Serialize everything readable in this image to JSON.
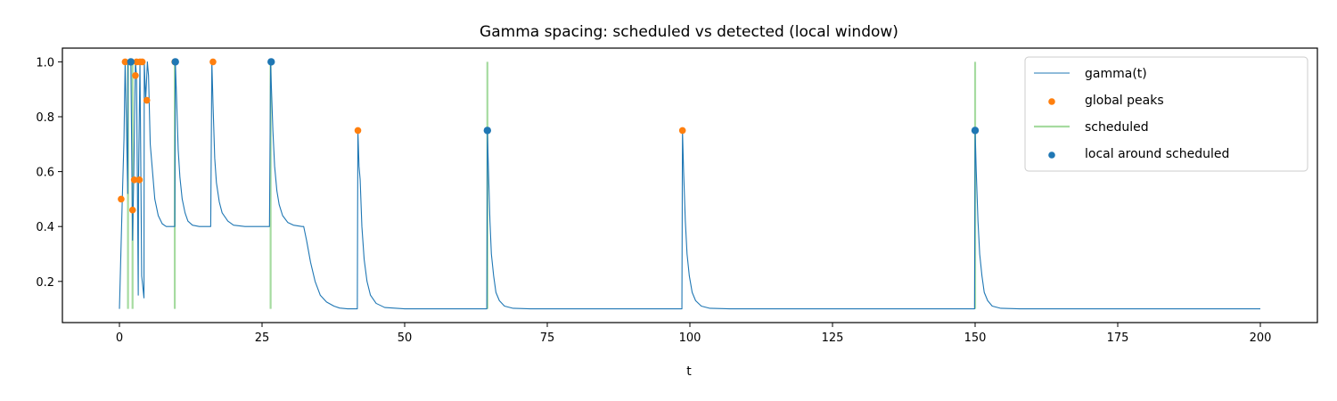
{
  "chart_data": {
    "type": "line",
    "title": "Gamma spacing: scheduled vs detected (local window)",
    "xlabel": "t",
    "ylabel": "",
    "xlim": [
      -10,
      210
    ],
    "ylim": [
      0.05,
      1.05
    ],
    "xticks": [
      "0",
      "25",
      "50",
      "75",
      "100",
      "125",
      "150",
      "175",
      "200"
    ],
    "yticks": [
      "0.2",
      "0.4",
      "0.6",
      "0.8",
      "1.0"
    ],
    "grid": false,
    "legend_position": "top-right",
    "legend": [
      "gamma(t)",
      "global peaks",
      "scheduled",
      "local around scheduled"
    ],
    "colors": {
      "gamma": "#1f77b4",
      "global_peaks": "#ff7f0e",
      "scheduled": "#a6dba0",
      "local": "#1f77b4"
    },
    "series": [
      {
        "name": "gamma(t)",
        "x": [
          0,
          0.5,
          0.8,
          1.0,
          1.2,
          1.45,
          1.5,
          2.0,
          2.3,
          2.4,
          2.5,
          2.8,
          3.0,
          3.3,
          3.35,
          3.6,
          3.9,
          4.3,
          4.35,
          4.6,
          4.9,
          5.1,
          5.4,
          5.8,
          6.2,
          6.8,
          7.5,
          8.2,
          9.0,
          9.7,
          9.8,
          10.0,
          10.3,
          10.6,
          11.0,
          11.5,
          12.0,
          12.8,
          14.0,
          16.0,
          16.2,
          16.4,
          16.7,
          17.0,
          17.5,
          18.0,
          19.0,
          20.0,
          22.0,
          24.0,
          26.0,
          26.3,
          26.5,
          26.6,
          26.9,
          27.2,
          27.6,
          28.0,
          28.6,
          29.5,
          30.5,
          32.0,
          32.3,
          32.8,
          33.5,
          34.3,
          35.2,
          36.3,
          37.6,
          38.6,
          40.0,
          41.7,
          41.8,
          42.0,
          42.2,
          42.5,
          42.9,
          43.4,
          44.0,
          45.0,
          46.5,
          50.0,
          64.4,
          64.5,
          64.7,
          64.95,
          65.2,
          65.6,
          66.0,
          66.6,
          67.5,
          69.0,
          72.0,
          98.6,
          98.7,
          98.9,
          99.2,
          99.5,
          99.9,
          100.4,
          101.0,
          102.0,
          103.5,
          107.0,
          149.9,
          150.0,
          150.2,
          150.5,
          150.8,
          151.2,
          151.6,
          152.2,
          153.0,
          154.5,
          158.0,
          200.0
        ],
        "y": [
          0.1,
          0.5,
          0.72,
          1.0,
          0.8,
          0.52,
          1.0,
          1.0,
          0.35,
          0.46,
          0.57,
          1.0,
          0.95,
          0.15,
          0.57,
          1.0,
          0.22,
          0.14,
          1.0,
          0.86,
          1.0,
          0.95,
          0.7,
          0.6,
          0.5,
          0.44,
          0.41,
          0.4,
          0.4,
          0.4,
          1.0,
          0.88,
          0.68,
          0.58,
          0.5,
          0.45,
          0.42,
          0.405,
          0.4,
          0.4,
          1.0,
          0.85,
          0.65,
          0.56,
          0.49,
          0.45,
          0.42,
          0.405,
          0.4,
          0.4,
          0.4,
          0.4,
          1.0,
          0.93,
          0.75,
          0.62,
          0.53,
          0.48,
          0.44,
          0.415,
          0.405,
          0.4,
          0.4,
          0.35,
          0.27,
          0.2,
          0.15,
          0.125,
          0.11,
          0.103,
          0.1,
          0.1,
          0.75,
          0.62,
          0.57,
          0.4,
          0.28,
          0.2,
          0.15,
          0.12,
          0.105,
          0.1,
          0.1,
          0.75,
          0.6,
          0.42,
          0.3,
          0.22,
          0.16,
          0.13,
          0.11,
          0.102,
          0.1,
          0.1,
          0.75,
          0.6,
          0.42,
          0.3,
          0.22,
          0.16,
          0.13,
          0.11,
          0.102,
          0.1,
          0.1,
          0.75,
          0.6,
          0.42,
          0.3,
          0.22,
          0.16,
          0.13,
          0.11,
          0.102,
          0.1,
          0.1
        ]
      },
      {
        "name": "global peaks",
        "x": [
          0.3,
          1.0,
          2.0,
          2.3,
          2.6,
          2.8,
          3.0,
          3.5,
          3.6,
          4.0,
          4.8,
          9.7,
          16.4,
          26.6,
          41.8,
          64.5,
          98.7,
          150.0
        ],
        "y": [
          0.5,
          1.0,
          1.0,
          0.46,
          0.57,
          0.95,
          1.0,
          0.57,
          1.0,
          1.0,
          0.86,
          1.0,
          1.0,
          1.0,
          0.75,
          0.75,
          0.75,
          0.75
        ]
      },
      {
        "name": "scheduled",
        "x": [
          1.5,
          2.3,
          9.7,
          26.5,
          64.5,
          150.0
        ],
        "y_range": [
          0.1,
          1.0
        ]
      },
      {
        "name": "local around scheduled",
        "x": [
          2.0,
          9.8,
          26.6,
          64.5,
          150.0
        ],
        "y": [
          1.0,
          1.0,
          1.0,
          0.75,
          0.75
        ]
      }
    ]
  }
}
